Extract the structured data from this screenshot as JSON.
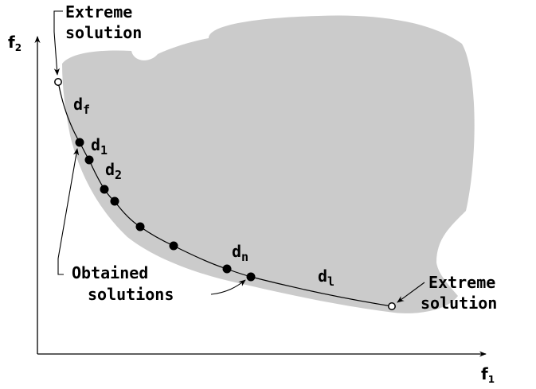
{
  "colors": {
    "region": "#cbcbcb",
    "ink": "#000000",
    "paper": "#ffffff"
  },
  "axes": {
    "x_label": "f",
    "x_sub": "1",
    "y_label": "f",
    "y_sub": "2"
  },
  "annotations": {
    "extreme_top": {
      "line1": "Extreme",
      "line2": "solution"
    },
    "extreme_bottom": {
      "line1": "Extreme",
      "line2": "solution"
    },
    "obtained": {
      "line1": "Obtained",
      "line2": "solutions"
    }
  },
  "distances": {
    "d_f": {
      "base": "d",
      "sub": "f"
    },
    "d_1": {
      "base": "d",
      "sub": "1"
    },
    "d_2": {
      "base": "d",
      "sub": "2"
    },
    "d_n": {
      "base": "d",
      "sub": "n"
    },
    "d_l": {
      "base": "d",
      "sub": "l"
    }
  }
}
